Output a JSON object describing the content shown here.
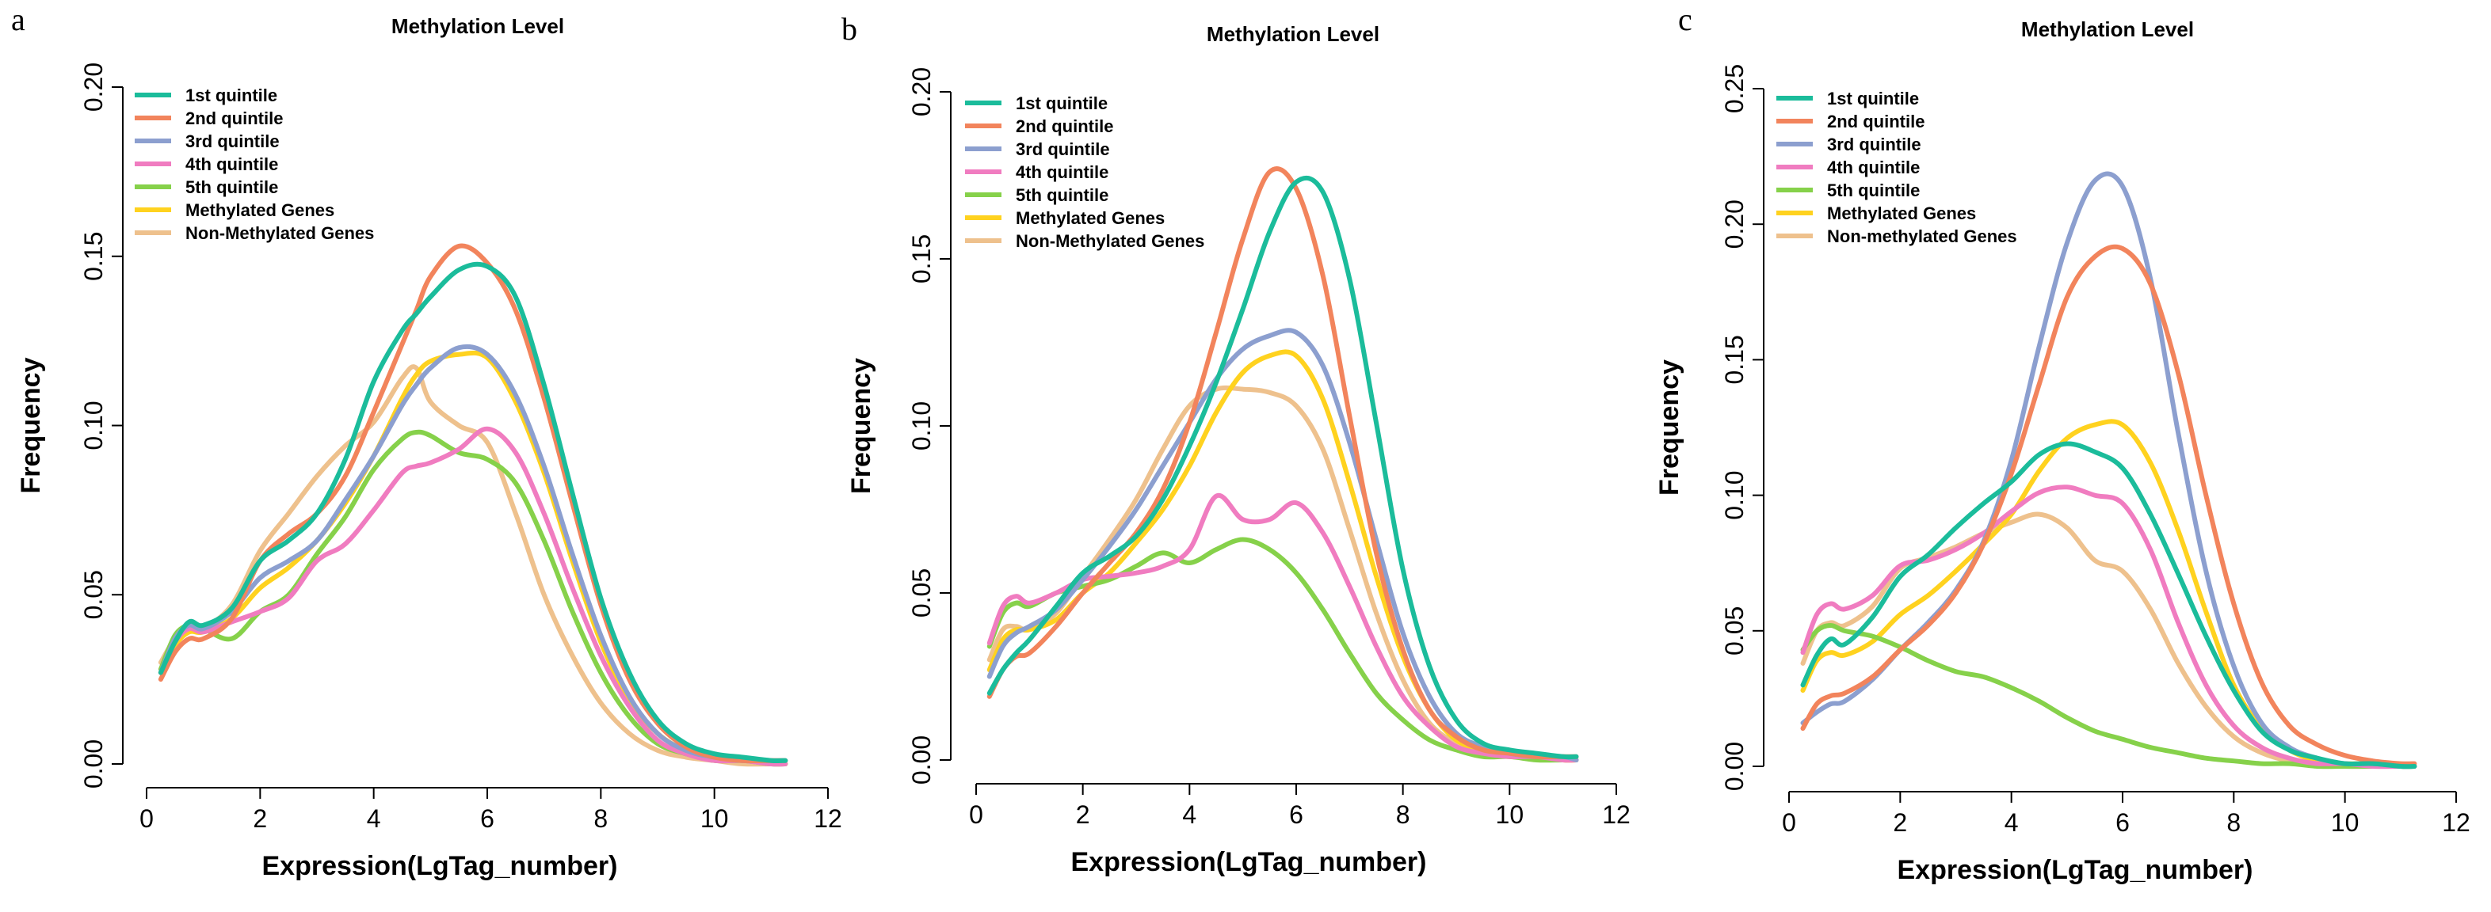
{
  "palette": {
    "1st quintile": "#1bbc9b",
    "2nd quintile": "#f2845c",
    "3rd quintile": "#8c9fcf",
    "4th quintile": "#f07cc0",
    "5th quintile": "#86d14a",
    "Methylated Genes": "#ffd21f",
    "Non-Methylated Genes": "#eec18d",
    "Non-methylated Genes": "#eec18d"
  },
  "chart_data": [
    {
      "panel": "a",
      "type": "line",
      "title": "Methylation Level",
      "xlabel": "Expression(LgTag_number)",
      "ylabel": "Frequency",
      "xlim": [
        0,
        12
      ],
      "ylim": [
        0,
        0.2
      ],
      "xticks": [
        0,
        2,
        4,
        6,
        8,
        10,
        12
      ],
      "yticks": [
        0.0,
        0.05,
        0.1,
        0.15,
        0.2
      ],
      "ytick_labels": [
        "0.00",
        "0.05",
        "0.10",
        "0.15",
        "0.20"
      ],
      "legend_position": "top-left",
      "x": [
        0.25,
        0.5,
        0.75,
        1,
        1.5,
        2,
        2.5,
        3,
        3.5,
        4,
        4.5,
        4.75,
        5,
        5.5,
        6,
        6.5,
        7,
        7.5,
        8,
        8.5,
        9,
        9.5,
        10,
        10.5,
        11,
        11.25
      ],
      "series": [
        {
          "name": "1st quintile",
          "values": [
            0.027,
            0.036,
            0.042,
            0.041,
            0.046,
            0.06,
            0.066,
            0.074,
            0.09,
            0.113,
            0.128,
            0.133,
            0.138,
            0.146,
            0.147,
            0.138,
            0.112,
            0.08,
            0.049,
            0.027,
            0.013,
            0.006,
            0.003,
            0.002,
            0.001,
            0.001
          ]
        },
        {
          "name": "2nd quintile",
          "values": [
            0.025,
            0.033,
            0.037,
            0.037,
            0.043,
            0.06,
            0.068,
            0.074,
            0.085,
            0.104,
            0.124,
            0.134,
            0.144,
            0.153,
            0.148,
            0.134,
            0.108,
            0.077,
            0.047,
            0.025,
            0.012,
            0.005,
            0.002,
            0.001,
            0.001,
            0.001
          ]
        },
        {
          "name": "3rd quintile",
          "values": [
            0.027,
            0.037,
            0.041,
            0.04,
            0.045,
            0.055,
            0.06,
            0.066,
            0.078,
            0.091,
            0.106,
            0.112,
            0.117,
            0.123,
            0.121,
            0.109,
            0.088,
            0.062,
            0.038,
            0.02,
            0.009,
            0.004,
            0.002,
            0.001,
            0.001,
            0.001
          ]
        },
        {
          "name": "4th quintile",
          "values": [
            0.027,
            0.036,
            0.04,
            0.039,
            0.042,
            0.045,
            0.049,
            0.06,
            0.065,
            0.075,
            0.086,
            0.088,
            0.089,
            0.093,
            0.099,
            0.092,
            0.074,
            0.052,
            0.032,
            0.017,
            0.007,
            0.003,
            0.001,
            0.001,
            0.0,
            0.0
          ]
        },
        {
          "name": "5th quintile",
          "values": [
            0.028,
            0.038,
            0.041,
            0.04,
            0.037,
            0.045,
            0.05,
            0.062,
            0.073,
            0.087,
            0.096,
            0.098,
            0.097,
            0.092,
            0.09,
            0.083,
            0.066,
            0.045,
            0.027,
            0.014,
            0.006,
            0.003,
            0.001,
            0.001,
            0.0,
            0.0
          ]
        },
        {
          "name": "Methylated Genes",
          "values": [
            0.027,
            0.035,
            0.039,
            0.039,
            0.043,
            0.052,
            0.058,
            0.066,
            0.077,
            0.091,
            0.108,
            0.115,
            0.119,
            0.121,
            0.12,
            0.107,
            0.086,
            0.06,
            0.036,
            0.019,
            0.009,
            0.004,
            0.002,
            0.001,
            0.001,
            0.0
          ]
        },
        {
          "name": "Non-Methylated Genes",
          "values": [
            0.03,
            0.037,
            0.04,
            0.04,
            0.047,
            0.063,
            0.074,
            0.085,
            0.094,
            0.101,
            0.114,
            0.117,
            0.107,
            0.1,
            0.095,
            0.074,
            0.05,
            0.032,
            0.018,
            0.009,
            0.004,
            0.002,
            0.001,
            0.0,
            0.0,
            0.0
          ]
        }
      ]
    },
    {
      "panel": "b",
      "type": "line",
      "title": "Methylation Level",
      "xlabel": "Expression(LgTag_number)",
      "ylabel": "Frequency",
      "xlim": [
        0,
        12
      ],
      "ylim": [
        0,
        0.2
      ],
      "xticks": [
        0,
        2,
        4,
        6,
        8,
        10,
        12
      ],
      "yticks": [
        0.0,
        0.05,
        0.1,
        0.15,
        0.2
      ],
      "ytick_labels": [
        "0.00",
        "0.05",
        "0.10",
        "0.15",
        "0.20"
      ],
      "legend_position": "top-left",
      "x": [
        0.25,
        0.5,
        0.75,
        1,
        1.5,
        2,
        2.5,
        3,
        3.5,
        4,
        4.5,
        5,
        5.5,
        6,
        6.5,
        7,
        7.5,
        8,
        8.5,
        9,
        9.5,
        10,
        10.5,
        11,
        11.25
      ],
      "series": [
        {
          "name": "1st quintile",
          "values": [
            0.02,
            0.027,
            0.032,
            0.036,
            0.046,
            0.056,
            0.061,
            0.067,
            0.078,
            0.094,
            0.113,
            0.135,
            0.158,
            0.173,
            0.17,
            0.144,
            0.101,
            0.057,
            0.028,
            0.012,
            0.005,
            0.003,
            0.002,
            0.001,
            0.001
          ]
        },
        {
          "name": "2nd quintile",
          "values": [
            0.019,
            0.027,
            0.031,
            0.032,
            0.04,
            0.05,
            0.059,
            0.068,
            0.081,
            0.101,
            0.128,
            0.156,
            0.176,
            0.171,
            0.145,
            0.103,
            0.062,
            0.033,
            0.015,
            0.007,
            0.003,
            0.002,
            0.001,
            0.001,
            0.001
          ]
        },
        {
          "name": "3rd quintile",
          "values": [
            0.025,
            0.034,
            0.038,
            0.04,
            0.045,
            0.054,
            0.064,
            0.075,
            0.088,
            0.101,
            0.114,
            0.123,
            0.127,
            0.128,
            0.118,
            0.095,
            0.066,
            0.038,
            0.019,
            0.008,
            0.004,
            0.002,
            0.001,
            0.001,
            0.0
          ]
        },
        {
          "name": "4th quintile",
          "values": [
            0.035,
            0.046,
            0.049,
            0.047,
            0.05,
            0.054,
            0.055,
            0.056,
            0.058,
            0.063,
            0.079,
            0.072,
            0.072,
            0.077,
            0.068,
            0.052,
            0.034,
            0.019,
            0.01,
            0.004,
            0.002,
            0.001,
            0.001,
            0.0,
            0.0
          ]
        },
        {
          "name": "5th quintile",
          "values": [
            0.034,
            0.044,
            0.047,
            0.046,
            0.05,
            0.052,
            0.054,
            0.058,
            0.062,
            0.059,
            0.063,
            0.066,
            0.063,
            0.056,
            0.045,
            0.032,
            0.02,
            0.012,
            0.006,
            0.003,
            0.001,
            0.001,
            0.0,
            0.0,
            0.0
          ]
        },
        {
          "name": "Methylated Genes",
          "values": [
            0.027,
            0.036,
            0.039,
            0.039,
            0.042,
            0.05,
            0.056,
            0.065,
            0.075,
            0.088,
            0.104,
            0.116,
            0.121,
            0.121,
            0.108,
            0.083,
            0.055,
            0.031,
            0.015,
            0.006,
            0.003,
            0.001,
            0.001,
            0.0,
            0.0
          ]
        },
        {
          "name": "Non-Methylated Genes",
          "values": [
            0.03,
            0.039,
            0.04,
            0.039,
            0.044,
            0.055,
            0.066,
            0.078,
            0.093,
            0.106,
            0.111,
            0.111,
            0.11,
            0.106,
            0.093,
            0.069,
            0.044,
            0.024,
            0.011,
            0.005,
            0.002,
            0.001,
            0.001,
            0.0,
            0.0
          ]
        }
      ]
    },
    {
      "panel": "c",
      "type": "line",
      "title": "Methylation Level",
      "xlabel": "Expression(LgTag_number)",
      "ylabel": "Frequency",
      "xlim": [
        0,
        12
      ],
      "ylim": [
        0,
        0.25
      ],
      "xticks": [
        0,
        2,
        4,
        6,
        8,
        10,
        12
      ],
      "yticks": [
        0.0,
        0.05,
        0.1,
        0.15,
        0.2,
        0.25
      ],
      "ytick_labels": [
        "0.00",
        "0.05",
        "0.10",
        "0.15",
        "0.20",
        "0.25"
      ],
      "legend_position": "top-left",
      "x": [
        0.25,
        0.5,
        0.75,
        1,
        1.5,
        2,
        2.5,
        3,
        3.5,
        4,
        4.5,
        5,
        5.5,
        6,
        6.5,
        7,
        7.5,
        8,
        8.5,
        9,
        9.5,
        10,
        10.5,
        11,
        11.25
      ],
      "series": [
        {
          "name": "1st quintile",
          "values": [
            0.03,
            0.041,
            0.047,
            0.045,
            0.055,
            0.07,
            0.078,
            0.088,
            0.097,
            0.105,
            0.115,
            0.119,
            0.116,
            0.11,
            0.093,
            0.071,
            0.048,
            0.028,
            0.013,
            0.006,
            0.003,
            0.001,
            0.001,
            0.0,
            0.0
          ]
        },
        {
          "name": "2nd quintile",
          "values": [
            0.014,
            0.023,
            0.026,
            0.027,
            0.033,
            0.043,
            0.052,
            0.064,
            0.082,
            0.108,
            0.141,
            0.173,
            0.188,
            0.191,
            0.178,
            0.145,
            0.1,
            0.06,
            0.031,
            0.015,
            0.008,
            0.004,
            0.002,
            0.001,
            0.001
          ]
        },
        {
          "name": "3rd quintile",
          "values": [
            0.016,
            0.02,
            0.023,
            0.024,
            0.032,
            0.043,
            0.053,
            0.065,
            0.083,
            0.113,
            0.155,
            0.193,
            0.216,
            0.214,
            0.18,
            0.123,
            0.072,
            0.037,
            0.016,
            0.007,
            0.003,
            0.001,
            0.001,
            0.0,
            0.0
          ]
        },
        {
          "name": "4th quintile",
          "values": [
            0.042,
            0.056,
            0.06,
            0.058,
            0.063,
            0.074,
            0.076,
            0.08,
            0.086,
            0.094,
            0.101,
            0.103,
            0.1,
            0.097,
            0.08,
            0.053,
            0.03,
            0.015,
            0.007,
            0.003,
            0.001,
            0.001,
            0.0,
            0.0,
            0.0
          ]
        },
        {
          "name": "5th quintile",
          "values": [
            0.043,
            0.05,
            0.052,
            0.05,
            0.048,
            0.044,
            0.039,
            0.035,
            0.033,
            0.029,
            0.024,
            0.018,
            0.013,
            0.01,
            0.007,
            0.005,
            0.003,
            0.002,
            0.001,
            0.001,
            0.0,
            0.0,
            0.0,
            0.0,
            0.0
          ]
        },
        {
          "name": "Methylated Genes",
          "values": [
            0.028,
            0.039,
            0.042,
            0.041,
            0.046,
            0.056,
            0.063,
            0.072,
            0.082,
            0.093,
            0.109,
            0.121,
            0.126,
            0.126,
            0.112,
            0.087,
            0.057,
            0.03,
            0.014,
            0.006,
            0.002,
            0.001,
            0.001,
            0.0,
            0.0
          ]
        },
        {
          "name": "Non-methylated Genes",
          "values": [
            0.038,
            0.05,
            0.053,
            0.052,
            0.059,
            0.073,
            0.077,
            0.081,
            0.086,
            0.09,
            0.093,
            0.088,
            0.076,
            0.072,
            0.058,
            0.038,
            0.022,
            0.011,
            0.005,
            0.002,
            0.001,
            0.0,
            0.0,
            0.0,
            0.0
          ]
        }
      ]
    }
  ]
}
